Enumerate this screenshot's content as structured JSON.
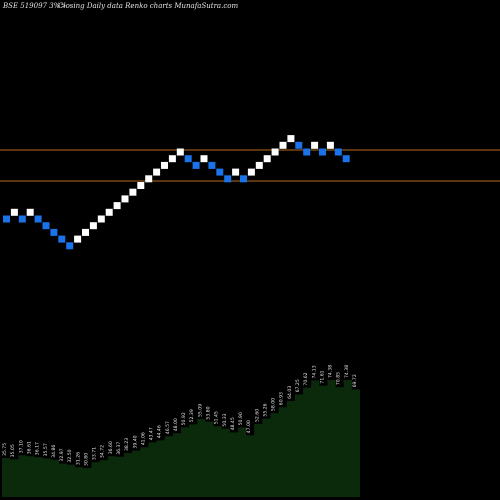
{
  "header": {
    "symbol": "BSE 519097 3%>",
    "text": "Closing Daily data  Renko  charts MunafaSutra.com"
  },
  "colors": {
    "up_brick": "#ffffff",
    "down_brick": "#1a73e8",
    "ref_line": "#b36a1e",
    "volume_fill": "#0b2a0b",
    "background": "#000000"
  },
  "chart_data": {
    "type": "renko",
    "brick_direction_sequence": [
      "down",
      "up",
      "down",
      "up",
      "down",
      "down",
      "down",
      "down",
      "down",
      "up",
      "up",
      "up",
      "up",
      "up",
      "up",
      "up",
      "up",
      "up",
      "up",
      "up",
      "up",
      "up",
      "up",
      "down",
      "down",
      "up",
      "down",
      "down",
      "down",
      "up",
      "down",
      "up",
      "up",
      "up",
      "up",
      "up",
      "up",
      "down",
      "down",
      "up",
      "down",
      "up",
      "down",
      "down"
    ],
    "reference_lines": [
      "upper",
      "lower"
    ],
    "bottom_labels": [
      "35.75",
      "35.05",
      "37.10",
      "36.61",
      "36.17",
      "35.57",
      "34.86",
      "32.97",
      "32.50",
      "31.26",
      "30.80",
      "33.71",
      "34.72",
      "36.60",
      "36.37",
      "38.23",
      "39.40",
      "41.06",
      "43.47",
      "44.46",
      "46.57",
      "48.00",
      "50.92",
      "52.39",
      "55.09",
      "53.80",
      "51.45",
      "50.33",
      "48.45",
      "50.90",
      "47.00",
      "52.60",
      "55.26",
      "58.00",
      "60.93",
      "64.03",
      "67.25",
      "70.62",
      "74.13",
      "71.61",
      "74.38",
      "70.85",
      "74.38",
      "69.72"
    ]
  }
}
